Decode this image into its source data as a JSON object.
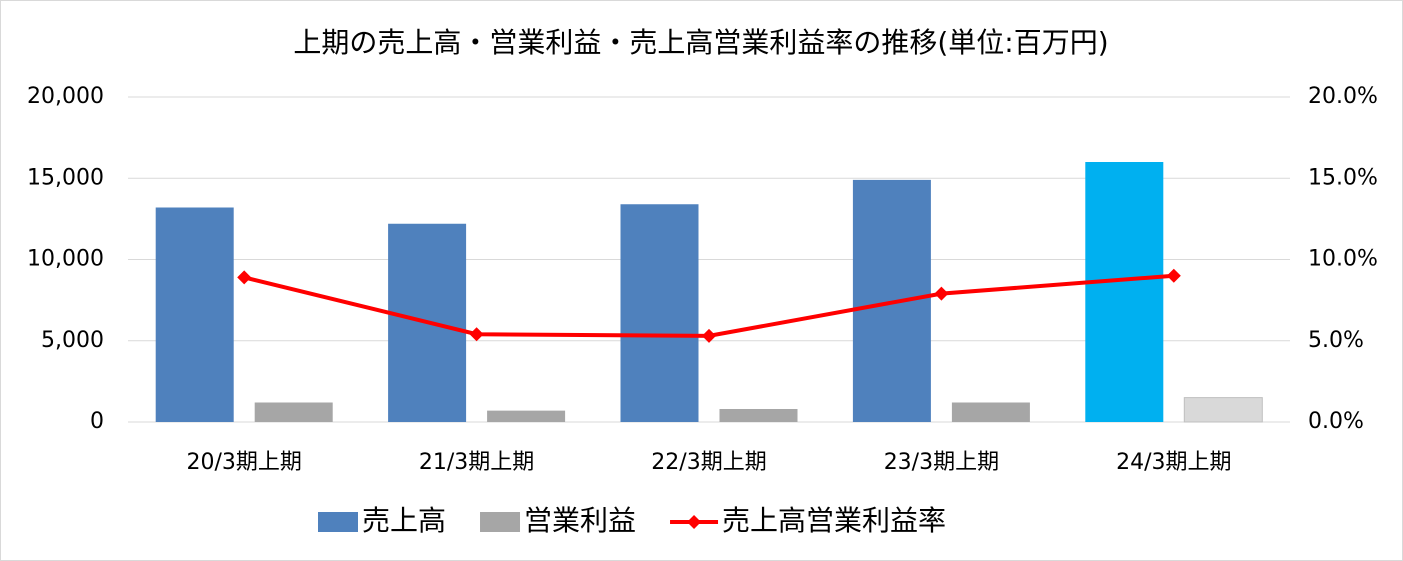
{
  "chart_data": {
    "type": "bar-line",
    "title": "上期の売上高・営業利益・売上高営業利益率の推移(単位:百万円)",
    "categories": [
      "20/3期上期",
      "21/3期上期",
      "22/3期上期",
      "23/3期上期",
      "24/3期上期"
    ],
    "series": [
      {
        "name": "売上高",
        "type": "bar",
        "color": "#4f81bd",
        "colors": [
          "#4f81bd",
          "#4f81bd",
          "#4f81bd",
          "#4f81bd",
          "#00b0f0"
        ],
        "values": [
          13200,
          12200,
          13400,
          14900,
          16000
        ]
      },
      {
        "name": "営業利益",
        "type": "bar",
        "color": "#a6a6a6",
        "colors": [
          "#a6a6a6",
          "#a6a6a6",
          "#a6a6a6",
          "#a6a6a6",
          "#d9d9d9"
        ],
        "values": [
          1200,
          700,
          800,
          1200,
          1500
        ]
      },
      {
        "name": "売上高営業利益率",
        "type": "line",
        "axis": "y2",
        "color": "#ff0000",
        "values": [
          8.9,
          5.4,
          5.3,
          7.9,
          9.0
        ]
      }
    ],
    "ylim": [
      0,
      20000
    ],
    "yticks": [
      0,
      {
        "value": 5000,
        "label": "5,000"
      },
      {
        "value": 10000,
        "label": "10,000"
      },
      {
        "value": 15000,
        "label": "15,000"
      },
      {
        "value": 20000,
        "label": "20,000"
      }
    ],
    "y2lim": [
      0,
      20
    ],
    "y2ticks": [
      {
        "value": 0,
        "label": "0.0%"
      },
      {
        "value": 5,
        "label": "5.0%"
      },
      {
        "value": 10,
        "label": "10.0%"
      },
      {
        "value": 15,
        "label": "15.0%"
      },
      {
        "value": 20,
        "label": "20.0%"
      }
    ],
    "grid": true,
    "legend": "bottom"
  }
}
